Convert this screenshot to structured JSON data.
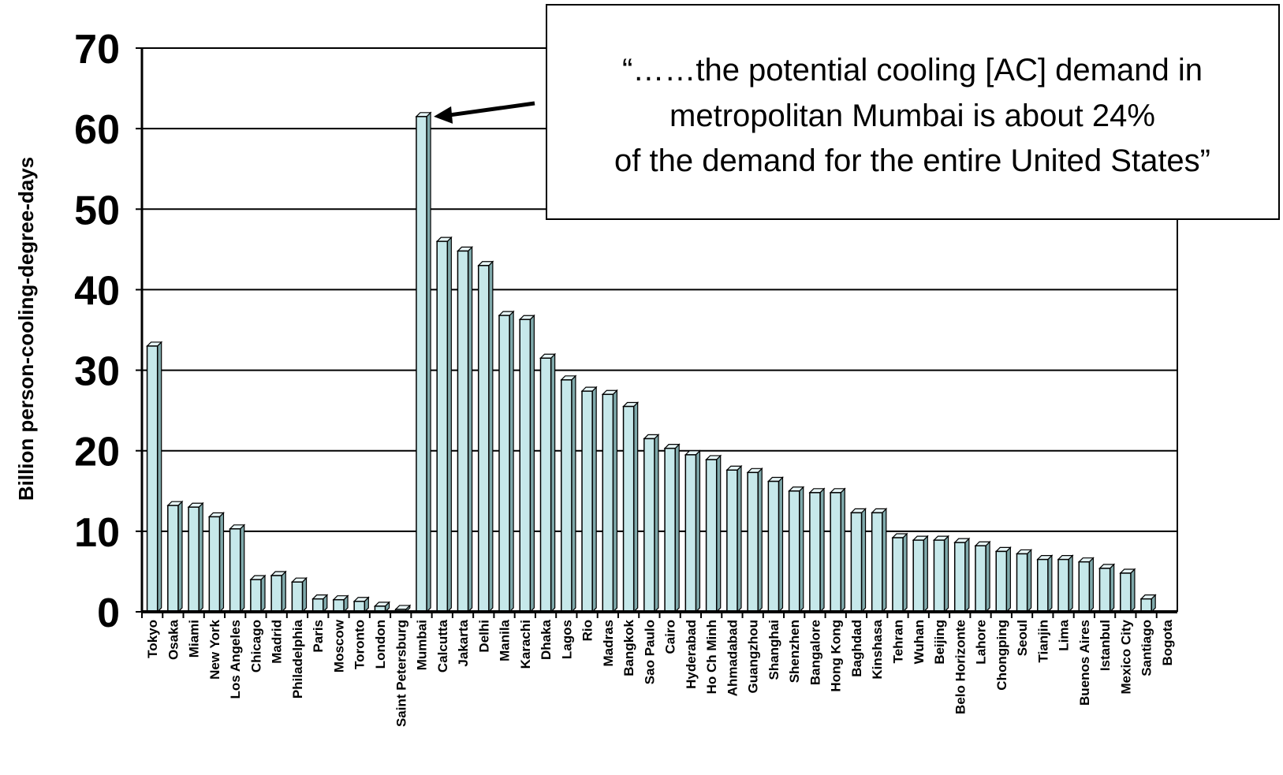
{
  "chart_data": {
    "type": "bar",
    "ylabel": "Billion person-cooling-degree-days",
    "xlabel": "",
    "ylim": [
      0,
      70
    ],
    "yticks": [
      0,
      10,
      20,
      30,
      40,
      50,
      60,
      70
    ],
    "grid": true,
    "categories": [
      "Tokyo",
      "Osaka",
      "Miami",
      "New York",
      "Los Angeles",
      "Chicago",
      "Madrid",
      "Philadelphia",
      "Paris",
      "Moscow",
      "Toronto",
      "London",
      "Saint Petersburg",
      "Mumbai",
      "Calcutta",
      "Jakarta",
      "Delhi",
      "Manila",
      "Karachi",
      "Dhaka",
      "Lagos",
      "Rio",
      "Madras",
      "Bangkok",
      "Sao Paulo",
      "Cairo",
      "Hyderabad",
      "Ho Ch Minh",
      "Ahmadabad",
      "Guangzhou",
      "Shanghai",
      "Shenzhen",
      "Bangalore",
      "Hong Kong",
      "Baghdad",
      "Kinshasa",
      "Tehran",
      "Wuhan",
      "Beijing",
      "Belo Horizonte",
      "Lahore",
      "Chongping",
      "Seoul",
      "Tianjin",
      "Lima",
      "Buenos Aires",
      "Istanbul",
      "Mexico City",
      "Santiago",
      "Bogota"
    ],
    "values": [
      33,
      13.2,
      13,
      11.8,
      10.3,
      4,
      4.5,
      3.7,
      1.6,
      1.5,
      1.3,
      0.7,
      0.3,
      61.5,
      46,
      44.8,
      43,
      36.8,
      36.3,
      31.5,
      28.8,
      27.4,
      27,
      25.5,
      21.5,
      20.3,
      19.5,
      18.9,
      17.6,
      17.3,
      16.2,
      15,
      14.8,
      14.8,
      12.3,
      12.3,
      9.2,
      8.9,
      8.9,
      8.6,
      8.2,
      7.5,
      7.2,
      6.5,
      6.5,
      6.2,
      5.4,
      4.8,
      1.6,
      0
    ],
    "bar_color": "#c6e8ea",
    "bar_edge_color": "#000000",
    "annotation": {
      "line1": "“……the potential cooling [AC] demand in",
      "line2": "metropolitan Mumbai is about 24%",
      "line3": "of the demand for the entire United States”",
      "target_category": "Mumbai"
    }
  }
}
